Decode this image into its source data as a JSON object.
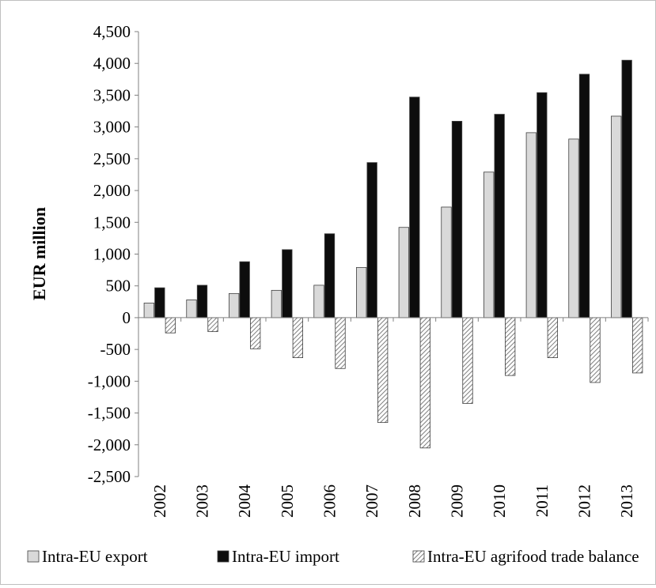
{
  "chart_data": {
    "type": "bar",
    "title": "",
    "xlabel": "",
    "ylabel": "EUR million",
    "ylim": [
      -2500,
      4500
    ],
    "ytick_step": 500,
    "y_tick_labels": [
      "4,500",
      "4,000",
      "3,500",
      "3,000",
      "2,500",
      "2,000",
      "1,500",
      "1,000",
      "500",
      "0",
      "-500",
      "-1,000",
      "-1,500",
      "-2,000",
      "-2,500"
    ],
    "categories": [
      "2002",
      "2003",
      "2004",
      "2005",
      "2006",
      "2007",
      "2008",
      "2009",
      "2010",
      "2011",
      "2012",
      "2013"
    ],
    "grid": false,
    "legend_position": "bottom",
    "series": [
      {
        "name": "Intra-EU export",
        "color": "#d9d9d9",
        "pattern": "solid",
        "values": [
          230,
          280,
          380,
          430,
          510,
          790,
          1420,
          1740,
          2290,
          2910,
          2810,
          3170
        ]
      },
      {
        "name": "Intra-EU import",
        "color": "#0d0d0d",
        "pattern": "solid",
        "values": [
          470,
          510,
          880,
          1070,
          1320,
          2440,
          3470,
          3090,
          3200,
          3540,
          3830,
          4050
        ]
      },
      {
        "name": "Intra-EU agrifood trade balance",
        "color": "#bfbfbf",
        "pattern": "diagonal-hatch",
        "values": [
          -240,
          -220,
          -490,
          -630,
          -800,
          -1650,
          -2050,
          -1350,
          -910,
          -630,
          -1020,
          -870
        ]
      }
    ]
  }
}
